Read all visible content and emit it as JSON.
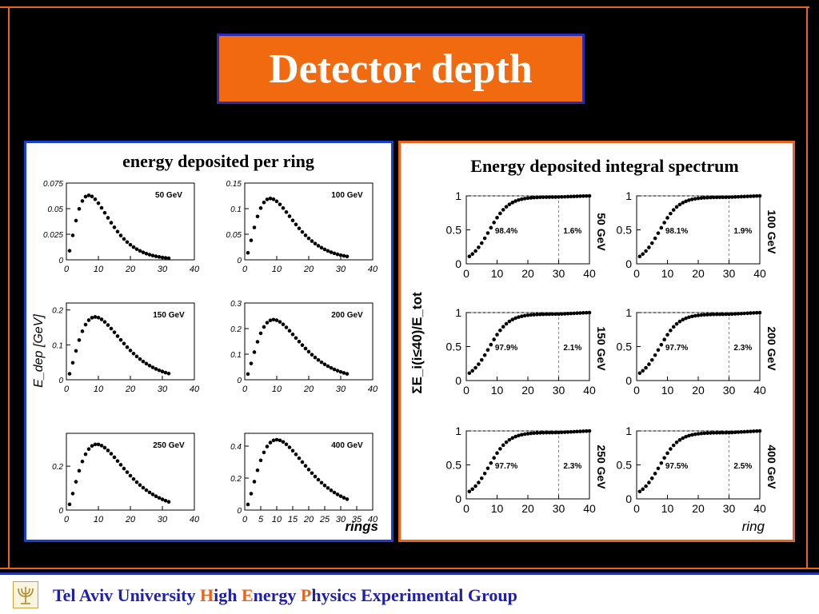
{
  "slide_title": "Detector depth",
  "footer": {
    "parts": [
      {
        "text": "Tel Aviv University ",
        "highlight": false
      },
      {
        "text": "H",
        "highlight": true
      },
      {
        "text": "igh ",
        "highlight": false
      },
      {
        "text": "E",
        "highlight": true
      },
      {
        "text": "nergy ",
        "highlight": false
      },
      {
        "text": "P",
        "highlight": true
      },
      {
        "text": "hysics Experimental Group",
        "highlight": false
      }
    ]
  },
  "colors": {
    "frame": "#e8641e",
    "title_bg": "#f26a10",
    "title_border": "#2b2bb5",
    "footer_text": "#1f1fa8",
    "highlight": "#e8641e"
  },
  "logo_icon": "menorah-icon",
  "chart_data": [
    {
      "type": "scatter",
      "title": "energy deposited per ring",
      "ylabel": "E_dep [GeV]",
      "xlabel": "rings",
      "xlim": [
        0,
        40
      ],
      "xticks": [
        0,
        10,
        20,
        30,
        40
      ],
      "panels": [
        {
          "label": "50  GeV",
          "ylim": [
            0,
            0.075
          ],
          "yticks": [
            "0",
            "0.025",
            "0.05",
            "0.075"
          ],
          "peak": 0.063,
          "mode": 7,
          "xticks": [
            "0",
            "10",
            "20",
            "30",
            "40"
          ]
        },
        {
          "label": "100 GeV",
          "ylim": [
            0,
            0.15
          ],
          "yticks": [
            "0",
            "0.05",
            "0.1",
            "0.15"
          ],
          "peak": 0.12,
          "mode": 8,
          "xticks": [
            "0",
            "10",
            "20",
            "30",
            "40"
          ]
        },
        {
          "label": "150 GeV",
          "ylim": [
            0,
            0.22
          ],
          "yticks": [
            "0",
            "0.1",
            "0.2"
          ],
          "peak": 0.18,
          "mode": 9,
          "xticks": [
            "0",
            "10",
            "20",
            "30",
            "40"
          ]
        },
        {
          "label": "200 GeV",
          "ylim": [
            0,
            0.3
          ],
          "yticks": [
            "0",
            "0.1",
            "0.2",
            "0.3"
          ],
          "peak": 0.235,
          "mode": 9,
          "xticks": [
            "0",
            "10",
            "20",
            "30",
            "40"
          ]
        },
        {
          "label": "250 GeV",
          "ylim": [
            0,
            0.35
          ],
          "yticks": [
            "0",
            "0.2"
          ],
          "peak": 0.3,
          "mode": 9.5,
          "xticks": [
            "0",
            "10",
            "20",
            "30",
            "40"
          ]
        },
        {
          "label": "400 GeV",
          "ylim": [
            0,
            0.48
          ],
          "yticks": [
            "0",
            "0.2",
            "0.4"
          ],
          "peak": 0.44,
          "mode": 10,
          "xticks": [
            "0",
            "5",
            "10",
            "15",
            "20",
            "25",
            "30",
            "35",
            "40"
          ]
        }
      ]
    },
    {
      "type": "scatter",
      "title": "Energy deposited integral spectrum",
      "ylabel": "ΣE_i(i≤40)/E_tot",
      "xlabel": "ring",
      "xlim": [
        0,
        40
      ],
      "ylim": [
        0,
        1
      ],
      "xticks": [
        "0",
        "10",
        "20",
        "30",
        "40"
      ],
      "yticks": [
        "0",
        "0.5",
        "1"
      ],
      "panels": [
        {
          "label": "50 GeV",
          "inside": "98.4%",
          "outside": "1.6%",
          "final": 0.984
        },
        {
          "label": "100 GeV",
          "inside": "98.1%",
          "outside": "1.9%",
          "final": 0.981
        },
        {
          "label": "150 GeV",
          "inside": "97.9%",
          "outside": "2.1%",
          "final": 0.979
        },
        {
          "label": "200 GeV",
          "inside": "97.7%",
          "outside": "2.3%",
          "final": 0.977
        },
        {
          "label": "250 GeV",
          "inside": "97.7%",
          "outside": "2.3%",
          "final": 0.977
        },
        {
          "label": "400 GeV",
          "inside": "97.5%",
          "outside": "2.5%",
          "final": 0.975
        }
      ]
    }
  ]
}
